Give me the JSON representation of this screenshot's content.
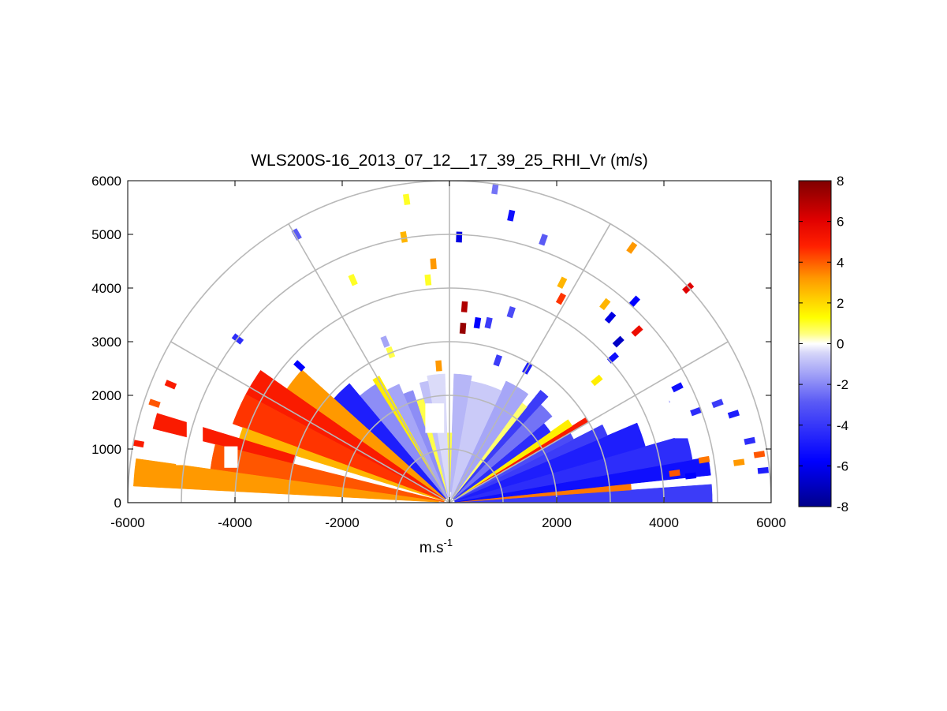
{
  "chart_data": {
    "type": "heatmap",
    "subtype": "polar-rhi-sector",
    "title": "WLS200S-16_2013_07_12__17_39_25_RHI_Vr (m/s)",
    "xlabel": "m.s",
    "xlabel_exponent": "-1",
    "ylabel": "",
    "xlim": [
      -6000,
      6000
    ],
    "ylim": [
      0,
      6000
    ],
    "x_ticks": [
      "-6000",
      "-4000",
      "-2000",
      "0",
      "2000",
      "4000",
      "6000"
    ],
    "y_ticks": [
      "0",
      "1000",
      "2000",
      "3000",
      "4000",
      "5000",
      "6000"
    ],
    "polar_grid": {
      "ranges": [
        1000,
        2000,
        3000,
        4000,
        5000,
        6000
      ],
      "angles_deg": [
        0,
        30,
        60,
        90,
        120,
        150,
        180
      ]
    },
    "colorbar": {
      "min": -8,
      "max": 8,
      "ticks": [
        "8",
        "6",
        "4",
        "2",
        "0",
        "-2",
        "-4",
        "-6",
        "-8"
      ],
      "colors": [
        "#00008a",
        "#0000ff",
        "#7a7af0",
        "#ffffff",
        "#ffff00",
        "#ff9900",
        "#ff0000",
        "#7f0000"
      ]
    },
    "sectors": [
      {
        "elev_from": 0,
        "elev_to": 4,
        "range_from": 100,
        "range_to": 4900,
        "vr": -4.0
      },
      {
        "elev_from": 4,
        "elev_to": 6,
        "range_from": 100,
        "range_to": 3400,
        "vr": 3.5
      },
      {
        "elev_from": 6,
        "elev_to": 10,
        "range_from": 100,
        "range_to": 4900,
        "vr": -5.5
      },
      {
        "elev_from": 10,
        "elev_to": 16,
        "range_from": 100,
        "range_to": 4600,
        "vr": -4.5
      },
      {
        "elev_from": 16,
        "elev_to": 23,
        "range_from": 100,
        "range_to": 3800,
        "vr": -5.0
      },
      {
        "elev_from": 23,
        "elev_to": 27,
        "range_from": 100,
        "range_to": 3200,
        "vr": -4.0
      },
      {
        "elev_from": 27,
        "elev_to": 30,
        "range_from": 100,
        "range_to": 2600,
        "vr": -3.5
      },
      {
        "elev_from": 30,
        "elev_to": 32,
        "range_from": 100,
        "range_to": 3000,
        "vr": 5.0
      },
      {
        "elev_from": 32,
        "elev_to": 35,
        "range_from": 100,
        "range_to": 2700,
        "vr": 1.5
      },
      {
        "elev_from": 35,
        "elev_to": 40,
        "range_from": 100,
        "range_to": 2300,
        "vr": -4.5
      },
      {
        "elev_from": 40,
        "elev_to": 47,
        "range_from": 100,
        "range_to": 2500,
        "vr": -2.5
      },
      {
        "elev_from": 47,
        "elev_to": 51,
        "range_from": 100,
        "range_to": 2700,
        "vr": -4.0
      },
      {
        "elev_from": 51,
        "elev_to": 54,
        "range_from": 100,
        "range_to": 2300,
        "vr": 0.6
      },
      {
        "elev_from": 54,
        "elev_to": 65,
        "range_from": 100,
        "range_to": 2500,
        "vr": -1.5
      },
      {
        "elev_from": 65,
        "elev_to": 80,
        "range_from": 100,
        "range_to": 2300,
        "vr": -0.8
      },
      {
        "elev_from": 80,
        "elev_to": 88,
        "range_from": 200,
        "range_to": 2400,
        "vr": -1.2
      },
      {
        "elev_from": 88,
        "elev_to": 92,
        "range_from": 300,
        "range_to": 1300,
        "vr": 0.8
      },
      {
        "elev_from": 92,
        "elev_to": 100,
        "range_from": 100,
        "range_to": 2400,
        "vr": -0.5
      },
      {
        "elev_from": 100,
        "elev_to": 104,
        "range_from": 100,
        "range_to": 2300,
        "vr": -1.0
      },
      {
        "elev_from": 104,
        "elev_to": 108,
        "range_from": 200,
        "range_to": 2000,
        "vr": 0.8
      },
      {
        "elev_from": 108,
        "elev_to": 113,
        "range_from": 100,
        "range_to": 2200,
        "vr": -2.0
      },
      {
        "elev_from": 113,
        "elev_to": 119,
        "range_from": 100,
        "range_to": 2400,
        "vr": -1.5
      },
      {
        "elev_from": 119,
        "elev_to": 122,
        "range_from": 100,
        "range_to": 2700,
        "vr": 1.5
      },
      {
        "elev_from": 122,
        "elev_to": 130,
        "range_from": 100,
        "range_to": 2600,
        "vr": -2.0
      },
      {
        "elev_from": 130,
        "elev_to": 138,
        "range_from": 100,
        "range_to": 2900,
        "vr": -5.0
      },
      {
        "elev_from": 138,
        "elev_to": 145,
        "range_from": 100,
        "range_to": 3700,
        "vr": 3.0
      },
      {
        "elev_from": 145,
        "elev_to": 152,
        "range_from": 100,
        "range_to": 4300,
        "vr": 5.0
      },
      {
        "elev_from": 152,
        "elev_to": 160,
        "range_from": 100,
        "range_to": 4300,
        "vr": 4.5
      },
      {
        "elev_from": 160,
        "elev_to": 163,
        "range_from": 100,
        "range_to": 4100,
        "vr": 2.5
      },
      {
        "elev_from": 163,
        "elev_to": 166,
        "range_from": 3000,
        "range_to": 5700,
        "vr": 5.0
      },
      {
        "elev_from": 166,
        "elev_to": 172,
        "range_from": 100,
        "range_to": 4500,
        "vr": 4.0
      },
      {
        "elev_from": 172,
        "elev_to": 177,
        "range_from": 200,
        "range_to": 5900,
        "vr": 3.0
      }
    ],
    "scatter_cells": [
      {
        "x": 4000,
        "y": 1880,
        "vr": -5.0
      },
      {
        "x": 4250,
        "y": 2150,
        "vr": -5.5
      },
      {
        "x": 4600,
        "y": 1700,
        "vr": -4.5
      },
      {
        "x": 5000,
        "y": 1850,
        "vr": -4.0
      },
      {
        "x": 5300,
        "y": 1650,
        "vr": -5.0
      },
      {
        "x": 5600,
        "y": 1150,
        "vr": -4.5
      },
      {
        "x": 5780,
        "y": 900,
        "vr": 4.0
      },
      {
        "x": 5850,
        "y": 600,
        "vr": -5.0
      },
      {
        "x": 5400,
        "y": 750,
        "vr": 3.0
      },
      {
        "x": 4750,
        "y": 800,
        "vr": 3.5
      },
      {
        "x": 4500,
        "y": 500,
        "vr": -6.0
      },
      {
        "x": 4200,
        "y": 550,
        "vr": 4.0
      },
      {
        "x": 2750,
        "y": 2280,
        "vr": 1.5
      },
      {
        "x": 3050,
        "y": 2700,
        "vr": -5.5
      },
      {
        "x": 3150,
        "y": 3000,
        "vr": -7.0
      },
      {
        "x": 3500,
        "y": 3200,
        "vr": 5.5
      },
      {
        "x": 3000,
        "y": 3450,
        "vr": -6.5
      },
      {
        "x": 3450,
        "y": 3750,
        "vr": -6.0
      },
      {
        "x": 2900,
        "y": 3700,
        "vr": 2.5
      },
      {
        "x": 2080,
        "y": 3800,
        "vr": 4.5
      },
      {
        "x": 2100,
        "y": 4100,
        "vr": 2.5
      },
      {
        "x": 4450,
        "y": 4000,
        "vr": 6.0
      },
      {
        "x": 3400,
        "y": 4750,
        "vr": 3.0
      },
      {
        "x": 1750,
        "y": 4900,
        "vr": -3.0
      },
      {
        "x": 1150,
        "y": 5350,
        "vr": -5.5
      },
      {
        "x": 850,
        "y": 5850,
        "vr": -2.5
      },
      {
        "x": 180,
        "y": 4950,
        "vr": -6.5
      },
      {
        "x": 280,
        "y": 3650,
        "vr": 7.0
      },
      {
        "x": 520,
        "y": 3350,
        "vr": -6.0
      },
      {
        "x": 730,
        "y": 3350,
        "vr": -4.0
      },
      {
        "x": 1150,
        "y": 3550,
        "vr": -3.5
      },
      {
        "x": 250,
        "y": 3250,
        "vr": 7.5
      },
      {
        "x": 900,
        "y": 2650,
        "vr": -4.0
      },
      {
        "x": 1450,
        "y": 2500,
        "vr": -5.0
      },
      {
        "x": -800,
        "y": 5650,
        "vr": 1.0
      },
      {
        "x": -850,
        "y": 4950,
        "vr": 2.5
      },
      {
        "x": -300,
        "y": 4450,
        "vr": 3.0
      },
      {
        "x": -400,
        "y": 4150,
        "vr": 1.0
      },
      {
        "x": -1800,
        "y": 4150,
        "vr": 1.0
      },
      {
        "x": -2850,
        "y": 5000,
        "vr": -3.0
      },
      {
        "x": -3950,
        "y": 3050,
        "vr": -4.5
      },
      {
        "x": -2800,
        "y": 2550,
        "vr": -6.0
      },
      {
        "x": -1200,
        "y": 3000,
        "vr": -1.5
      },
      {
        "x": -1100,
        "y": 2800,
        "vr": 0.8
      },
      {
        "x": -200,
        "y": 2550,
        "vr": 3.0
      },
      {
        "x": -5200,
        "y": 2200,
        "vr": 5.0
      },
      {
        "x": -5500,
        "y": 1850,
        "vr": 4.0
      },
      {
        "x": -5800,
        "y": 1100,
        "vr": 5.0
      }
    ],
    "gaps": [
      {
        "x": -4700,
        "y": 1500,
        "w": 500,
        "h": 500
      },
      {
        "x": -4900,
        "y": 1000,
        "w": 300,
        "h": 500
      },
      {
        "x": -5100,
        "y": 700,
        "w": 200,
        "h": 400
      },
      {
        "x": -4200,
        "y": 650,
        "w": 250,
        "h": 400
      },
      {
        "x": -450,
        "y": 1300,
        "w": 350,
        "h": 550
      },
      {
        "x": 3800,
        "y": 1600,
        "w": 300,
        "h": 500
      },
      {
        "x": 4400,
        "y": 1900,
        "w": 400,
        "h": 400
      },
      {
        "x": 4200,
        "y": 1200,
        "w": 300,
        "h": 300
      }
    ]
  }
}
